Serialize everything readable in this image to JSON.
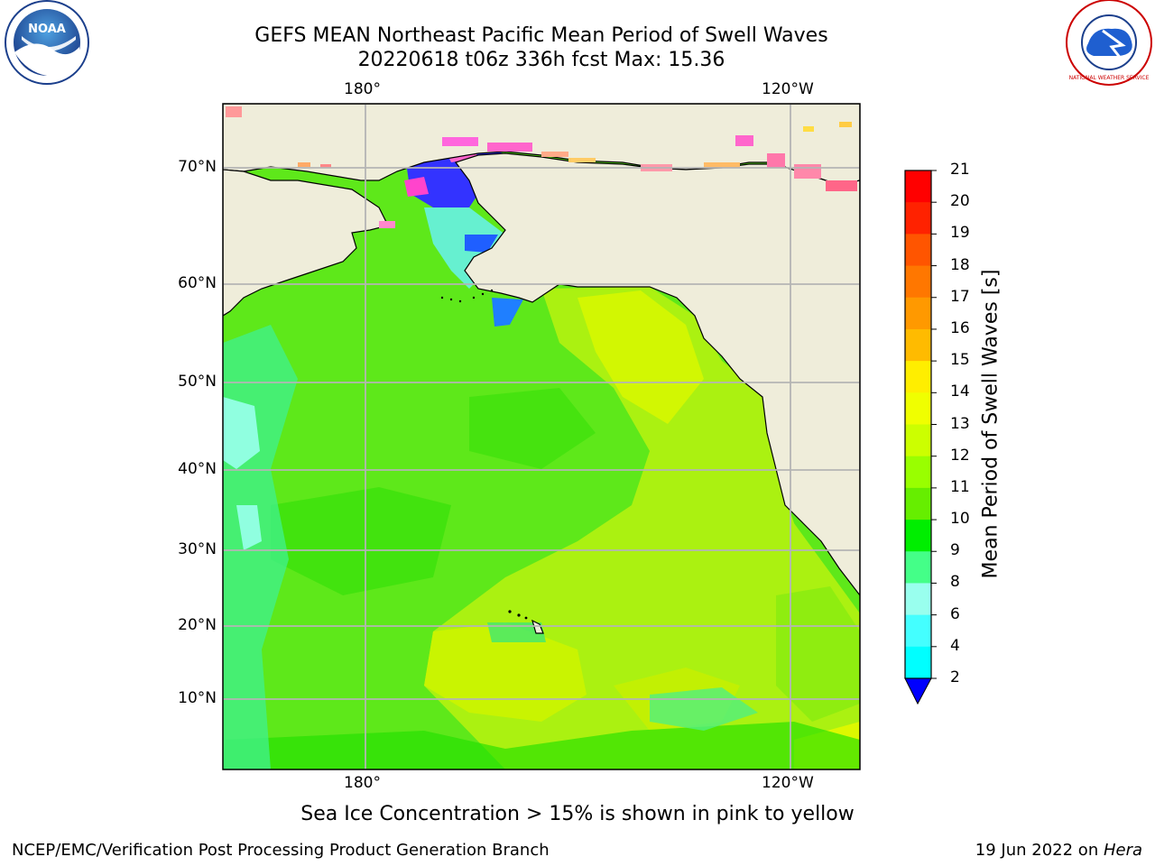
{
  "title": {
    "line1": "GEFS MEAN Northeast Pacific Mean Period of Swell Waves",
    "line2": "20220618 t06z 336h fcst   Max: 15.36"
  },
  "map": {
    "lon_labels_top": [
      "180°",
      "120°W"
    ],
    "lon_labels_bottom": [
      "180°",
      "120°W"
    ],
    "lat_labels": [
      "70°N",
      "60°N",
      "50°N",
      "40°N",
      "30°N",
      "20°N",
      "10°N"
    ],
    "colors": {
      "land": "#efedda",
      "ocean_main": "#66ee22",
      "grid": "#b4b4b4",
      "coast": "#000000"
    }
  },
  "colorbar": {
    "label": "Mean Period of Swell Waves [s]",
    "ticks": [
      "21",
      "20",
      "19",
      "18",
      "17",
      "16",
      "15",
      "14",
      "13",
      "12",
      "11",
      "10",
      "9",
      "8",
      "6",
      "4",
      "2"
    ],
    "colors_top_to_bottom": [
      "#ff0000",
      "#ff2200",
      "#ff5500",
      "#ff7700",
      "#ff9900",
      "#ffbb00",
      "#ffee00",
      "#f0ff00",
      "#ccff00",
      "#99ff00",
      "#66ee00",
      "#00ee00",
      "#44ff88",
      "#99ffee",
      "#44ffff",
      "#00ffff",
      "#00ddff",
      "#0077ff",
      "#0000ff"
    ]
  },
  "sea_ice_note": "Sea Ice Concentration > 15% is shown in pink to yellow",
  "footer": {
    "left": "NCEP/EMC/Verification Post Processing Product Generation Branch",
    "right_prefix": "19 Jun 2022 on ",
    "right_host": "Hera"
  },
  "logos": {
    "left": "noaa-logo",
    "left_text": "NOAA",
    "right": "nws-logo",
    "right_text": "NATIONAL WEATHER SERVICE"
  }
}
